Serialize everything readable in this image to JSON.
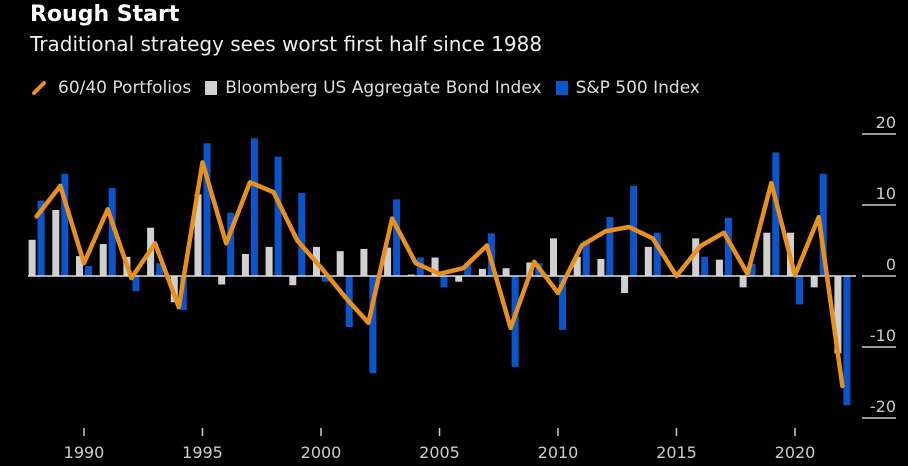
{
  "chart_data": {
    "type": "bar+line",
    "title": "Rough Start",
    "subtitle": "Traditional strategy sees worst first half since 1988",
    "xlabel": "",
    "ylabel": "",
    "ylim": [
      -20,
      20
    ],
    "yticks": [
      20,
      10,
      0,
      -10,
      -20
    ],
    "xticks": [
      1990,
      1995,
      2000,
      2005,
      2010,
      2015,
      2020
    ],
    "legend_position": "top-left",
    "x": [
      1988,
      1989,
      1990,
      1991,
      1992,
      1993,
      1994,
      1995,
      1996,
      1997,
      1998,
      1999,
      2000,
      2001,
      2002,
      2003,
      2004,
      2005,
      2006,
      2007,
      2008,
      2009,
      2010,
      2011,
      2012,
      2013,
      2014,
      2015,
      2016,
      2017,
      2018,
      2019,
      2020,
      2021,
      2022
    ],
    "series": [
      {
        "name": "60/40 Portfolios",
        "type": "line",
        "color": "#e8901e",
        "values": [
          8.4,
          12.7,
          1.8,
          9.4,
          -0.3,
          4.6,
          -4.4,
          16.0,
          4.6,
          13.2,
          11.8,
          5.0,
          1.2,
          -2.9,
          -6.6,
          8.1,
          1.8,
          0.3,
          1.1,
          4.3,
          -7.3,
          2.0,
          -2.4,
          4.3,
          6.3,
          6.9,
          5.3,
          0.0,
          4.2,
          6.1,
          0.3,
          13.1,
          0.1,
          8.3,
          -15.5
        ]
      },
      {
        "name": "Bloomberg US Aggregate Bond Index",
        "type": "bar",
        "color": "#d0d0d0",
        "values": [
          5.1,
          9.3,
          2.8,
          4.5,
          2.7,
          6.8,
          -3.7,
          11.5,
          -1.2,
          3.1,
          4.1,
          -1.3,
          4.1,
          3.5,
          3.8,
          4.0,
          0.2,
          2.6,
          -0.8,
          1.0,
          1.1,
          1.9,
          5.3,
          2.7,
          2.4,
          -2.4,
          4.1,
          0.1,
          5.3,
          2.3,
          -1.6,
          6.1,
          6.1,
          -1.6,
          -10.9
        ]
      },
      {
        "name": "S&P 500 Index",
        "type": "bar",
        "color": "#0a55cc",
        "values": [
          10.6,
          14.4,
          1.4,
          12.4,
          -2.1,
          1.8,
          -4.8,
          18.7,
          8.9,
          19.4,
          16.8,
          11.7,
          -0.8,
          -7.2,
          -13.7,
          10.8,
          2.6,
          -1.6,
          1.8,
          6.0,
          -12.8,
          1.8,
          -7.6,
          5.0,
          8.3,
          12.7,
          6.1,
          0.2,
          2.7,
          8.2,
          1.7,
          17.4,
          -4.0,
          14.4,
          -18.2
        ]
      }
    ]
  }
}
